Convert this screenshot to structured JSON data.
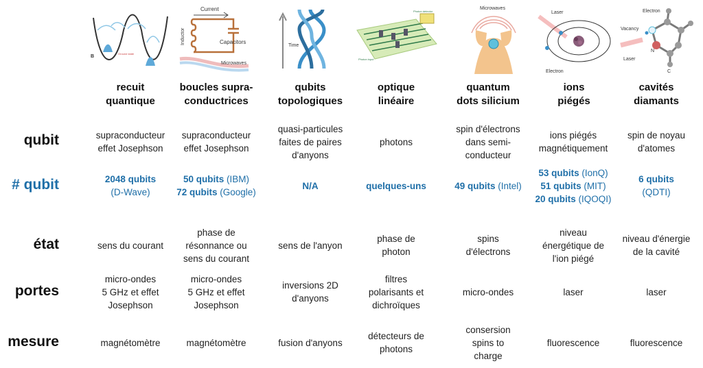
{
  "columns": [
    {
      "title_l1": "recuit",
      "title_l2": "quantique",
      "icon": "annealing-diagram"
    },
    {
      "title_l1": "boucles supra-",
      "title_l2": "conductrices",
      "icon": "superconducting-loop-diagram",
      "img_labels": {
        "current": "Current",
        "inductor": "Inductor",
        "capacitors": "Capacitors",
        "microwaves": "Microwaves"
      }
    },
    {
      "title_l1": "qubits",
      "title_l2": "topologiques",
      "icon": "braided-anyons-diagram",
      "img_labels": {
        "time": "Time"
      }
    },
    {
      "title_l1": "optique",
      "title_l2": "linéaire",
      "icon": "photonic-chip-diagram"
    },
    {
      "title_l1": "quantum",
      "title_l2": "dots silicium",
      "icon": "quantum-dot-diagram",
      "img_labels": {
        "microwaves": "Microwaves"
      }
    },
    {
      "title_l1": "ions",
      "title_l2": "piégés",
      "icon": "trapped-ion-diagram",
      "img_labels": {
        "laser": "Laser",
        "electron": "Electron"
      }
    },
    {
      "title_l1": "cavités",
      "title_l2": "diamants",
      "icon": "diamond-vacancy-diagram",
      "img_labels": {
        "electron": "Electron",
        "vacancy": "Vacancy",
        "laser": "Laser",
        "n": "N",
        "c": "C"
      }
    }
  ],
  "rows": {
    "qubit": {
      "label": "qubit",
      "cells": [
        [
          "supraconducteur",
          "effet Josephson"
        ],
        [
          "supraconducteur",
          "effet Josephson"
        ],
        [
          "quasi-particules",
          "faites de paires",
          "d'anyons"
        ],
        [
          "photons"
        ],
        [
          "spin d'électrons",
          "dans semi-",
          "conducteur"
        ],
        [
          "ions piégés",
          "magnétiquement"
        ],
        [
          "spin de noyau",
          "d'atomes"
        ]
      ]
    },
    "nqubit": {
      "label": "# qubit",
      "cells": [
        [
          {
            "n": "2048 qubits",
            "o": ""
          },
          {
            "n": "",
            "o": "(D-Wave)"
          }
        ],
        [
          {
            "n": "50 qubits",
            "o": " (IBM)"
          },
          {
            "n": "72 qubits",
            "o": " (Google)"
          }
        ],
        [
          {
            "n": "N/A",
            "o": ""
          }
        ],
        [
          {
            "n": "quelques-uns",
            "o": ""
          }
        ],
        [
          {
            "n": "49 qubits",
            "o": " (Intel)"
          }
        ],
        [
          {
            "n": "53 qubits",
            "o": " (IonQ)"
          },
          {
            "n": "51 qubits",
            "o": " (MIT)"
          },
          {
            "n": "20 qubits",
            "o": " (IQOQI)"
          }
        ],
        [
          {
            "n": "6 qubits",
            "o": ""
          },
          {
            "n": "",
            "o": "(QDTI)"
          }
        ]
      ]
    },
    "etat": {
      "label": "état",
      "cells": [
        [
          "sens du courant"
        ],
        [
          "phase de",
          "résonnance ou",
          "sens du courant"
        ],
        [
          "sens de l'anyon"
        ],
        [
          "phase de",
          "photon"
        ],
        [
          "spins",
          "d'électrons"
        ],
        [
          "niveau",
          "énergétique de",
          "l'ion piégé"
        ],
        [
          "niveau d'énergie",
          "de la cavité"
        ]
      ]
    },
    "portes": {
      "label": "portes",
      "cells": [
        [
          "micro-ondes",
          "5 GHz et effet",
          "Josephson"
        ],
        [
          "micro-ondes",
          "5 GHz et effet",
          "Josephson"
        ],
        [
          "inversions 2D",
          "d'anyons"
        ],
        [
          "filtres",
          "polarisants et",
          "dichroïques"
        ],
        [
          "micro-ondes"
        ],
        [
          "laser"
        ],
        [
          "laser"
        ]
      ]
    },
    "mesure": {
      "label": "mesure",
      "cells": [
        [
          "magnétomètre"
        ],
        [
          "magnétomètre"
        ],
        [
          "fusion d'anyons"
        ],
        [
          "détecteurs de",
          "photons"
        ],
        [
          "consersion",
          "spins to",
          "charge"
        ],
        [
          "fluorescence"
        ],
        [
          "fluorescence"
        ]
      ]
    }
  },
  "colors": {
    "accent": "#1f6fa8",
    "text": "#222222"
  }
}
